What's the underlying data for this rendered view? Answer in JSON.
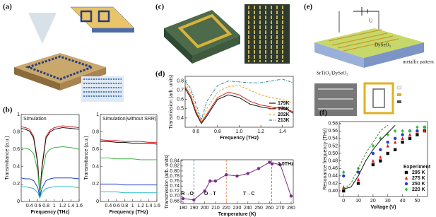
{
  "panel_labels": [
    "(a)",
    "(b)",
    "(c)",
    "(d)",
    "(e)",
    "(f)"
  ],
  "diagram_labels": [
    "U",
    "DySeO₃",
    "metallic pattern",
    "SrTiO₃/DySeO₃"
  ],
  "chart_data": [
    {
      "type": "line",
      "title": "Simulation",
      "x_label": "Frequency (THz)",
      "y_label": "Transmittance (a.u.)",
      "x": [
        0.2,
        0.3,
        0.4,
        0.5,
        0.6,
        0.65,
        0.7,
        0.8,
        0.9,
        1.0,
        1.2,
        1.4,
        1.6
      ],
      "series": [
        {
          "color": "#e02020",
          "values": [
            0.86,
            0.85,
            0.83,
            0.75,
            0.45,
            0.08,
            0.4,
            0.75,
            0.82,
            0.85,
            0.87,
            0.86,
            0.85
          ]
        },
        {
          "color": "#111111",
          "values": [
            0.84,
            0.83,
            0.81,
            0.73,
            0.43,
            0.07,
            0.38,
            0.73,
            0.8,
            0.83,
            0.85,
            0.84,
            0.83
          ]
        },
        {
          "color": "#3cb043",
          "values": [
            0.62,
            0.61,
            0.6,
            0.55,
            0.35,
            0.08,
            0.3,
            0.55,
            0.6,
            0.62,
            0.63,
            0.62,
            0.6
          ]
        },
        {
          "color": "#2040d0",
          "values": [
            0.27,
            0.26,
            0.26,
            0.24,
            0.16,
            0.05,
            0.15,
            0.24,
            0.26,
            0.27,
            0.27,
            0.27,
            0.26
          ]
        },
        {
          "color": "#20b8c8",
          "values": [
            0.17,
            0.17,
            0.16,
            0.15,
            0.1,
            0.04,
            0.1,
            0.15,
            0.16,
            0.17,
            0.17,
            0.17,
            0.16
          ]
        }
      ],
      "xlim": [
        0.2,
        1.6
      ],
      "xticks": [
        0.4,
        0.6,
        0.8,
        1,
        1.2,
        1.4,
        1.6
      ],
      "ylim": [
        0,
        1
      ],
      "yticks": [
        0,
        0.2,
        0.4,
        0.6,
        0.8,
        1
      ]
    },
    {
      "type": "line",
      "title": "Simulation(without SRR)",
      "x_label": "Frequency (THz)",
      "y_label": "Transmittance (a.u.)",
      "x": [
        0.2,
        0.4,
        0.6,
        0.8,
        1.0,
        1.2,
        1.4,
        1.6
      ],
      "series": [
        {
          "color": "#e02020",
          "values": [
            0.71,
            0.7,
            0.7,
            0.69,
            0.69,
            0.69,
            0.68,
            0.68
          ]
        },
        {
          "color": "#111111",
          "values": [
            0.69,
            0.69,
            0.68,
            0.68,
            0.67,
            0.67,
            0.67,
            0.66
          ]
        },
        {
          "color": "#3cb043",
          "values": [
            0.5,
            0.5,
            0.49,
            0.49,
            0.49,
            0.48,
            0.48,
            0.48
          ]
        },
        {
          "color": "#2040d0",
          "values": [
            0.2,
            0.2,
            0.2,
            0.19,
            0.19,
            0.19,
            0.19,
            0.19
          ]
        },
        {
          "color": "#20b8c8",
          "values": [
            0.11,
            0.11,
            0.11,
            0.1,
            0.1,
            0.1,
            0.1,
            0.1
          ]
        }
      ],
      "xlim": [
        0.2,
        1.6
      ],
      "xticks": [
        0.4,
        0.6,
        0.8,
        1,
        1.2,
        1.4,
        1.6
      ],
      "ylim": [
        0,
        1
      ],
      "yticks": [
        0,
        0.2,
        0.4,
        0.6,
        0.8,
        1
      ]
    },
    {
      "type": "line",
      "x_label": "Frequency (THz)",
      "y_label": "Transmission (arb. units)",
      "x": [
        0.5,
        0.55,
        0.6,
        0.65,
        0.7,
        0.8,
        0.9,
        1.0,
        1.1,
        1.2,
        1.3,
        1.4,
        1.5
      ],
      "series": [
        {
          "name": "179K",
          "color": "#111111",
          "values": [
            0.72,
            0.62,
            0.45,
            0.34,
            0.42,
            0.6,
            0.65,
            0.62,
            0.55,
            0.52,
            0.5,
            0.52,
            0.45
          ]
        },
        {
          "name": "190K",
          "color": "#d02a1a",
          "values": [
            0.74,
            0.64,
            0.47,
            0.35,
            0.44,
            0.62,
            0.68,
            0.65,
            0.58,
            0.54,
            0.52,
            0.5,
            0.47
          ]
        },
        {
          "name": "202K",
          "color": "#f0a020",
          "dash": "dashed",
          "values": [
            0.78,
            0.68,
            0.5,
            0.36,
            0.5,
            0.68,
            0.74,
            0.75,
            0.7,
            0.65,
            0.62,
            0.6,
            0.56
          ]
        },
        {
          "name": "213K",
          "color": "#2a8a9a",
          "dash": "dashdot",
          "values": [
            0.8,
            0.72,
            0.55,
            0.38,
            0.58,
            0.75,
            0.8,
            0.79,
            0.78,
            0.78,
            0.8,
            0.82,
            0.78
          ]
        }
      ],
      "xlim": [
        0.5,
        1.5
      ],
      "xticks": [
        0.6,
        0.8,
        {
          "value": 1,
          "label": "1.0"
        },
        1.2,
        1.4
      ],
      "ylim": [
        0.3,
        0.85
      ],
      "yticks": [
        0.4,
        0.5,
        0.6,
        0.7,
        0.8
      ],
      "legend": "lower right"
    },
    {
      "type": "line",
      "x_label": "Temperature (K)",
      "y_label": "Transmission (arb. units)",
      "x": [
        180,
        190,
        200,
        205,
        210,
        220,
        230,
        240,
        250,
        260,
        270,
        280
      ],
      "series": [
        {
          "name": "1.0THz",
          "color": "#7a2a8a",
          "marker": "circle",
          "values": [
            0.69,
            0.685,
            0.72,
            0.76,
            0.76,
            0.785,
            0.78,
            0.79,
            0.81,
            0.835,
            0.825,
            0.7
          ]
        }
      ],
      "vlines": [
        {
          "x": 190,
          "color": "#3a70c8"
        },
        {
          "x": 220,
          "color": "#e07a3c"
        },
        {
          "x": 262,
          "color": "#3a9a3a"
        }
      ],
      "annotations": [
        "R→O",
        "O→T",
        "T→C"
      ],
      "xlim": [
        178,
        282
      ],
      "xticks": [
        180,
        190,
        200,
        210,
        220,
        230,
        240,
        250,
        260,
        270,
        280
      ],
      "ylim": [
        0.67,
        0.845
      ],
      "yticks": [
        0.68,
        {
          "value": 0.7,
          "label": "0.70"
        },
        0.72,
        0.74,
        0.76,
        0.78,
        {
          "value": 0.8,
          "label": "0.80"
        },
        0.82,
        0.84
      ],
      "legend": "upper right"
    },
    {
      "type": "scatter",
      "x_label": "Voltage (V)",
      "y_label": "Resonance frequency (THz)",
      "legend_title": "Experiment",
      "x": [
        0,
        10,
        20,
        25,
        30,
        35,
        40,
        45,
        50,
        55
      ],
      "series": [
        {
          "name": "295 K",
          "color": "#111111",
          "marker": "square",
          "values": [
            0.4,
            0.42,
            0.47,
            0.48,
            0.5,
            0.51,
            0.53,
            0.54,
            0.55,
            0.56
          ]
        },
        {
          "name": "275 K",
          "color": "#e02020",
          "marker": "triangle",
          "values": [
            0.41,
            0.43,
            0.48,
            0.49,
            0.52,
            0.53,
            0.54,
            0.55,
            0.56,
            0.56
          ]
        },
        {
          "name": "250 K",
          "color": "#2040d0",
          "marker": "circle",
          "values": [
            0.44,
            0.45,
            0.5,
            0.51,
            0.53,
            0.54,
            0.55,
            0.56,
            0.56,
            0.57
          ]
        },
        {
          "name": "220 K",
          "color": "#30c040",
          "marker": "diamond",
          "values": [
            0.45,
            0.46,
            0.52,
            0.54,
            0.55,
            0.56,
            0.56,
            0.56,
            0.57,
            0.57
          ]
        },
        {
          "color": "#111111",
          "x": [
            0,
            5,
            10,
            15,
            20,
            25,
            30,
            35
          ],
          "values": [
            0.405,
            0.41,
            0.44,
            0.48,
            0.51,
            0.535,
            0.555,
            0.575
          ]
        },
        {
          "color": "#3a8a2a",
          "dash": "dashed",
          "x": [
            0,
            5,
            10,
            15,
            20,
            25,
            30
          ],
          "values": [
            0.405,
            0.42,
            0.46,
            0.5,
            0.53,
            0.56,
            0.575
          ]
        }
      ],
      "xlim": [
        -3,
        57
      ],
      "xticks": [
        0,
        10,
        20,
        30,
        40,
        50
      ],
      "ylim": [
        0.385,
        0.585
      ],
      "yticks": [
        {
          "value": 0.4,
          "label": "0.40"
        },
        0.42,
        0.44,
        0.46,
        0.48,
        {
          "value": 0.5,
          "label": "0.50"
        },
        0.52,
        0.54,
        0.56,
        0.58
      ],
      "legend": "lower right"
    }
  ]
}
